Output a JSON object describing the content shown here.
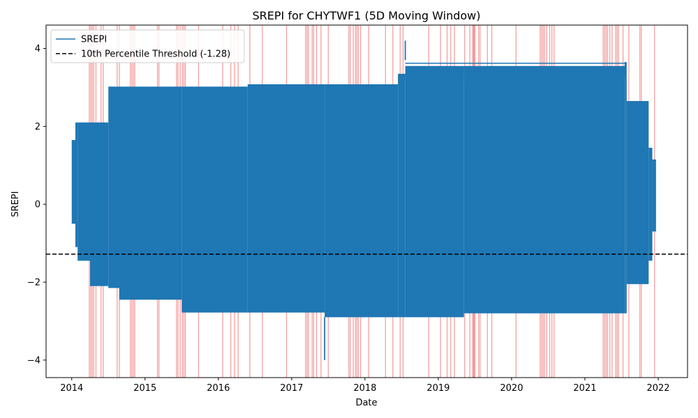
{
  "chart_data": {
    "type": "line",
    "title": "SREPI for CHYTWF1 (5D Moving Window)",
    "xlabel": "Date",
    "ylabel": "SREPI",
    "xlim": [
      2013.65,
      2022.4
    ],
    "ylim": [
      -4.45,
      4.6
    ],
    "x_ticks": [
      2014,
      2015,
      2016,
      2017,
      2018,
      2019,
      2020,
      2021,
      2022
    ],
    "x_tick_labels": [
      "2014",
      "2015",
      "2016",
      "2017",
      "2018",
      "2019",
      "2020",
      "2021",
      "2022"
    ],
    "y_ticks": [
      -4,
      -2,
      0,
      2,
      4
    ],
    "y_tick_labels": [
      "−4",
      "−2",
      "0",
      "2",
      "4"
    ],
    "legend": {
      "placement": "upper-left",
      "entries": [
        "SREPI",
        "10th Percentile Threshold (-1.28)"
      ]
    },
    "series": [
      {
        "name": "SREPI",
        "color": "#1f77b4",
        "envelope": [
          {
            "x0": 2014.0,
            "x1": 2014.05,
            "hi": 1.65,
            "lo": -0.5
          },
          {
            "x0": 2014.05,
            "x1": 2014.08,
            "hi": 2.1,
            "lo": -1.1
          },
          {
            "x0": 2014.08,
            "x1": 2014.25,
            "hi": 2.1,
            "lo": -1.45
          },
          {
            "x0": 2014.25,
            "x1": 2014.5,
            "hi": 2.1,
            "lo": -2.1
          },
          {
            "x0": 2014.5,
            "x1": 2014.65,
            "hi": 3.02,
            "lo": -2.15
          },
          {
            "x0": 2014.65,
            "x1": 2015.5,
            "hi": 3.02,
            "lo": -2.45
          },
          {
            "x0": 2015.5,
            "x1": 2016.4,
            "hi": 3.02,
            "lo": -2.78
          },
          {
            "x0": 2016.4,
            "x1": 2017.45,
            "hi": 3.08,
            "lo": -2.78
          },
          {
            "x0": 2017.45,
            "x1": 2018.45,
            "hi": 3.08,
            "lo": -2.9
          },
          {
            "x0": 2018.45,
            "x1": 2018.55,
            "hi": 3.35,
            "lo": -2.9
          },
          {
            "x0": 2018.55,
            "x1": 2019.35,
            "hi": 3.55,
            "lo": -2.9
          },
          {
            "x0": 2019.35,
            "x1": 2021.55,
            "hi": 3.55,
            "lo": -2.8
          },
          {
            "x0": 2021.55,
            "x1": 2021.57,
            "hi": 3.65,
            "lo": -2.8
          },
          {
            "x0": 2021.57,
            "x1": 2021.87,
            "hi": 2.65,
            "lo": -2.05
          },
          {
            "x0": 2021.87,
            "x1": 2021.92,
            "hi": 1.45,
            "lo": -1.45
          },
          {
            "x0": 2021.92,
            "x1": 2021.97,
            "hi": 1.15,
            "lo": -0.7
          }
        ],
        "spikes": [
          {
            "x": 2018.55,
            "y0": 3.7,
            "y1": 4.2
          },
          {
            "x": 2017.45,
            "y0": -2.9,
            "y1": -4.0
          },
          {
            "x": 2021.55,
            "y0": 3.3,
            "y1": 3.65
          }
        ]
      },
      {
        "name": "10th Percentile Threshold (-1.28)",
        "color": "#000000",
        "style": "dashed",
        "value": -1.28
      }
    ],
    "drought_event_dates": [
      2014.24,
      2014.26,
      2014.28,
      2014.3,
      2014.33,
      2014.4,
      2014.43,
      2014.62,
      2014.65,
      2014.8,
      2014.82,
      2014.84,
      2014.86,
      2015.17,
      2015.19,
      2015.43,
      2015.45,
      2015.48,
      2015.51,
      2015.53,
      2015.55,
      2015.73,
      2016.06,
      2016.17,
      2016.22,
      2016.27,
      2016.43,
      2016.6,
      2016.93,
      2017.19,
      2017.21,
      2017.23,
      2017.28,
      2017.3,
      2017.34,
      2017.4,
      2017.5,
      2017.78,
      2017.8,
      2017.84,
      2017.87,
      2017.89,
      2017.91,
      2017.94,
      2018.05,
      2018.28,
      2018.38,
      2018.48,
      2018.52,
      2018.87,
      2019.03,
      2019.12,
      2019.17,
      2019.22,
      2019.36,
      2019.43,
      2019.47,
      2019.48,
      2019.49,
      2019.5,
      2019.55,
      2019.57,
      2019.67,
      2019.73,
      2020.06,
      2020.39,
      2020.41,
      2020.43,
      2020.45,
      2020.48,
      2020.52,
      2020.55,
      2020.58,
      2021.25,
      2021.27,
      2021.29,
      2021.31,
      2021.34,
      2021.37,
      2021.42,
      2021.44,
      2021.46,
      2021.52,
      2021.6,
      2021.75,
      2021.77,
      2021.95
    ]
  }
}
